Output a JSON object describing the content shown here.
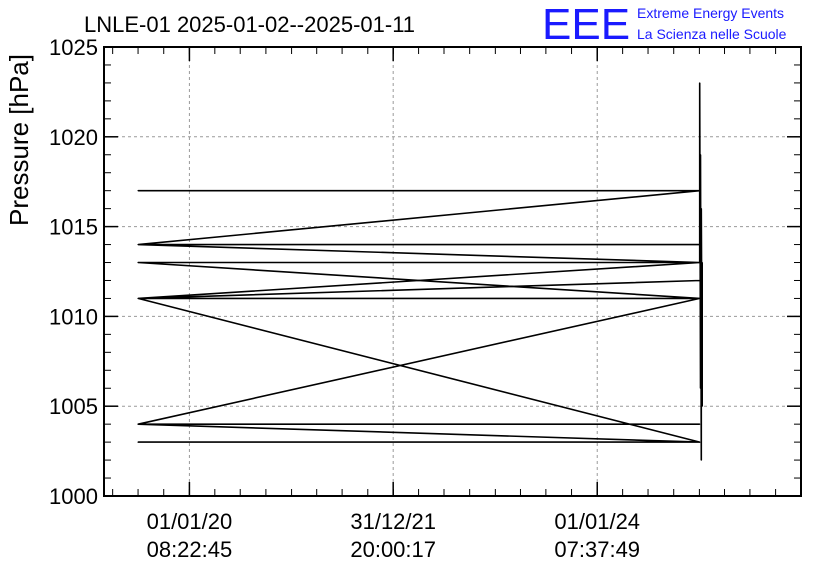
{
  "header": {
    "title": "LNLE-01 2025-01-02--2025-01-11",
    "logo": "EEE",
    "brand_line1": "Extreme Energy Events",
    "brand_line2": "La Scienza nelle Scuole"
  },
  "colors": {
    "brand": "#1a1aff",
    "line": "#000000",
    "grid": "#9a9a9a"
  },
  "chart_data": {
    "type": "line",
    "title": "LNLE-01 2025-01-02--2025-01-11",
    "ylabel": "Pressure [hPa]",
    "xlabel": "",
    "ylim": [
      1000,
      1025
    ],
    "yticks": [
      1000,
      1005,
      1010,
      1015,
      1020,
      1025
    ],
    "xlim": [
      "2019-03-01",
      "2025-12-31"
    ],
    "xticks": [
      {
        "date": "2020-01-01",
        "label_line1": "01/01/20",
        "label_line2": "08:22:45"
      },
      {
        "date": "2021-12-31",
        "label_line1": "31/12/21",
        "label_line2": "20:00:17"
      },
      {
        "date": "2024-01-01",
        "label_line1": "01/01/24",
        "label_line2": "07:37:49"
      }
    ],
    "grid": true,
    "x": [
      "2019-07-01",
      "2025-01-02",
      "2019-07-01",
      "2025-01-02",
      "2019-07-01",
      "2025-01-02",
      "2019-07-01",
      "2025-01-02",
      "2019-07-01",
      "2025-01-02",
      "2019-07-01",
      "2025-01-02",
      "2019-07-01",
      "2025-01-02",
      "2019-07-01",
      "2025-01-02",
      "2019-07-01",
      "2025-01-02",
      "2019-07-01",
      "2025-01-02",
      "2019-07-01",
      "2025-01-02",
      "2025-01-02",
      "2025-01-05",
      "2025-01-05",
      "2025-01-08",
      "2025-01-08",
      "2025-01-11",
      "2025-01-11"
    ],
    "y": [
      1017,
      1017,
      1014,
      1014,
      1014,
      1013,
      1013,
      1013,
      1011,
      1012,
      1011,
      1011,
      1004,
      1004,
      1004,
      1003,
      1003,
      1003,
      1011,
      1011,
      1013,
      1013,
      1023,
      1006,
      1019,
      1002,
      1016,
      1005,
      1013
    ]
  }
}
